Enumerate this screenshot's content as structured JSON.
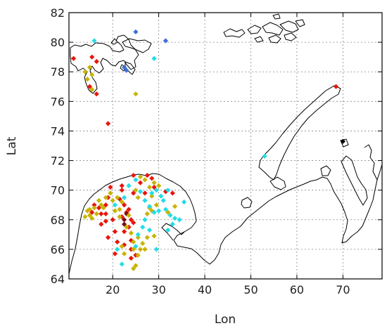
{
  "chart_data": {
    "type": "scatter",
    "xlabel": "Lon",
    "ylabel": "Lat",
    "xlim": [
      10.5,
      78.5
    ],
    "ylim": [
      64,
      82
    ],
    "xticks": [
      20,
      30,
      40,
      50,
      60,
      70
    ],
    "yticks": [
      64,
      66,
      68,
      70,
      72,
      74,
      76,
      78,
      80,
      82
    ],
    "grid": true,
    "legend": "none",
    "colors": {
      "red": "#e8150c",
      "darkred": "#7a1010",
      "olive": "#c8b400",
      "cyan": "#22dde6",
      "blue": "#3f6fd9",
      "black": "#000000"
    },
    "series": [
      {
        "color": "red",
        "points": [
          [
            11.5,
            78.9
          ],
          [
            15.5,
            79.0
          ],
          [
            16.5,
            78.7
          ],
          [
            15.0,
            77.0
          ],
          [
            16.5,
            76.5
          ],
          [
            19.0,
            74.5
          ],
          [
            68.5,
            77.0
          ],
          [
            19.5,
            70.2
          ],
          [
            22.0,
            70.3
          ],
          [
            24.5,
            71.0
          ],
          [
            27.5,
            71.0
          ],
          [
            28.5,
            70.8
          ],
          [
            29.0,
            70.2
          ],
          [
            31.5,
            69.9
          ],
          [
            33.0,
            69.8
          ],
          [
            15.5,
            68.5
          ],
          [
            17.0,
            68.8
          ],
          [
            17.5,
            68.4
          ],
          [
            18.5,
            68.4
          ],
          [
            17.5,
            67.7
          ],
          [
            18.5,
            67.9
          ],
          [
            20.0,
            68.0
          ],
          [
            22.0,
            68.2
          ],
          [
            23.5,
            68.7
          ],
          [
            24.0,
            68.0
          ],
          [
            20.5,
            67.2
          ],
          [
            22.5,
            67.2
          ],
          [
            23.5,
            67.5
          ],
          [
            19.0,
            66.8
          ],
          [
            21.0,
            66.5
          ],
          [
            22.5,
            66.3
          ],
          [
            24.0,
            66.6
          ],
          [
            24.0,
            66.0
          ],
          [
            25.0,
            65.6
          ],
          [
            24.0,
            65.4
          ],
          [
            19.0,
            69.5
          ],
          [
            18.5,
            69.0
          ],
          [
            21.5,
            69.4
          ],
          [
            22.5,
            69.0
          ],
          [
            22.0,
            70.0
          ],
          [
            24.5,
            69.8
          ],
          [
            26.0,
            70.5
          ],
          [
            23.0,
            68.5
          ],
          [
            24.5,
            67.8
          ],
          [
            27.0,
            69.8
          ],
          [
            20.5,
            65.7
          ],
          [
            16.0,
            69.0
          ]
        ]
      },
      {
        "color": "darkred",
        "points": [
          [
            22.5,
            68.0
          ],
          [
            22.5,
            67.7
          ],
          [
            23.0,
            68.4
          ]
        ]
      },
      {
        "color": "olive",
        "points": [
          [
            14.0,
            78.0
          ],
          [
            15.5,
            77.8
          ],
          [
            15.0,
            78.3
          ],
          [
            14.5,
            77.5
          ],
          [
            15.5,
            76.8
          ],
          [
            25.0,
            76.5
          ],
          [
            14.5,
            68.6
          ],
          [
            15.0,
            68.7
          ],
          [
            15.0,
            68.3
          ],
          [
            15.5,
            68.1
          ],
          [
            16.0,
            68.8
          ],
          [
            16.5,
            68.4
          ],
          [
            17.0,
            69.3
          ],
          [
            14.0,
            68.2
          ],
          [
            18.5,
            69.5
          ],
          [
            19.5,
            69.8
          ],
          [
            20.0,
            69.3
          ],
          [
            21.0,
            69.5
          ],
          [
            20.5,
            68.6
          ],
          [
            21.5,
            68.7
          ],
          [
            22.0,
            69.2
          ],
          [
            21.5,
            68.2
          ],
          [
            23.5,
            68.3
          ],
          [
            23.0,
            67.5
          ],
          [
            24.0,
            67.1
          ],
          [
            24.5,
            66.5
          ],
          [
            25.5,
            66.8
          ],
          [
            26.5,
            66.4
          ],
          [
            27.0,
            66.0
          ],
          [
            27.5,
            66.8
          ],
          [
            29.0,
            66.9
          ],
          [
            26.0,
            66.0
          ],
          [
            24.5,
            66.0
          ],
          [
            25.5,
            65.6
          ],
          [
            25.0,
            64.9
          ],
          [
            24.5,
            64.7
          ],
          [
            22.5,
            65.7
          ],
          [
            22.0,
            66.2
          ],
          [
            25.5,
            69.5
          ],
          [
            25.0,
            70.0
          ],
          [
            26.0,
            70.9
          ],
          [
            27.0,
            70.7
          ],
          [
            28.0,
            70.2
          ],
          [
            29.0,
            70.5
          ],
          [
            28.5,
            69.6
          ],
          [
            30.0,
            70.3
          ],
          [
            29.5,
            69.0
          ],
          [
            28.5,
            68.6
          ],
          [
            27.5,
            68.4
          ],
          [
            28.0,
            68.8
          ],
          [
            32.0,
            68.5
          ],
          [
            33.5,
            68.9
          ],
          [
            17.5,
            69.0
          ],
          [
            18.0,
            68.8
          ]
        ]
      },
      {
        "color": "cyan",
        "points": [
          [
            16.0,
            80.1
          ],
          [
            29.0,
            78.9
          ],
          [
            53.0,
            72.3
          ],
          [
            20.5,
            69.0
          ],
          [
            22.5,
            69.5
          ],
          [
            23.5,
            70.3
          ],
          [
            25.0,
            70.7
          ],
          [
            26.0,
            69.9
          ],
          [
            27.0,
            69.3
          ],
          [
            28.5,
            69.8
          ],
          [
            29.5,
            70.0
          ],
          [
            30.5,
            69.6
          ],
          [
            31.0,
            69.3
          ],
          [
            31.5,
            68.7
          ],
          [
            30.0,
            68.6
          ],
          [
            29.0,
            68.5
          ],
          [
            28.0,
            68.9
          ],
          [
            27.0,
            68.0
          ],
          [
            26.5,
            67.5
          ],
          [
            25.5,
            67.0
          ],
          [
            25.0,
            66.2
          ],
          [
            28.0,
            67.3
          ],
          [
            29.5,
            66.0
          ],
          [
            32.0,
            67.3
          ],
          [
            33.0,
            67.7
          ],
          [
            33.5,
            68.1
          ],
          [
            34.5,
            68.0
          ],
          [
            35.5,
            69.2
          ],
          [
            32.5,
            68.3
          ],
          [
            22.0,
            65.0
          ],
          [
            21.0,
            66.0
          ],
          [
            32.0,
            70.0
          ]
        ]
      },
      {
        "color": "blue",
        "points": [
          [
            25.0,
            80.7
          ],
          [
            31.5,
            80.1
          ],
          [
            22.5,
            78.3
          ],
          [
            23.0,
            78.1
          ]
        ]
      },
      {
        "color": "black",
        "points": [
          [
            70.0,
            73.3
          ]
        ]
      }
    ]
  }
}
